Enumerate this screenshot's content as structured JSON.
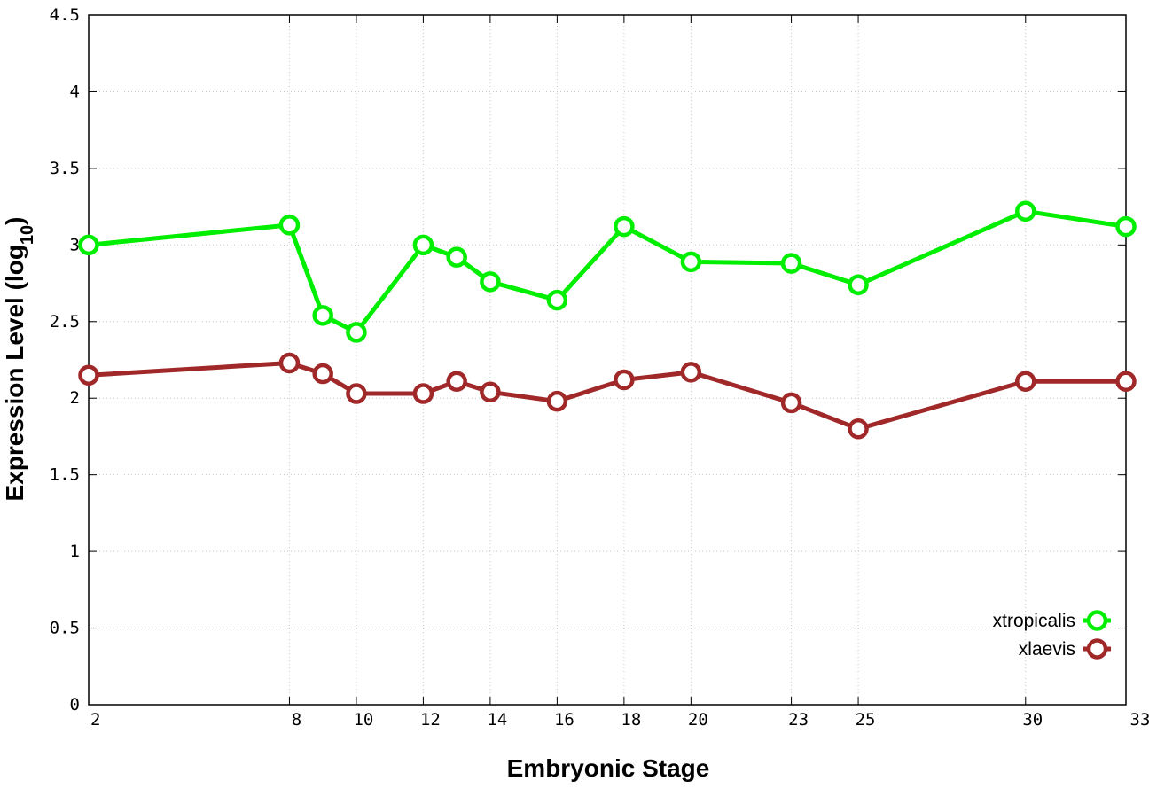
{
  "chart_data": {
    "type": "line",
    "xlabel": "Embryonic Stage",
    "ylabel_main": "Expression Level (log",
    "ylabel_sub": "10",
    "ylabel_close": ")",
    "xlim": [
      2,
      33
    ],
    "ylim": [
      0,
      4.5
    ],
    "x_ticks": [
      2,
      8,
      10,
      12,
      14,
      16,
      18,
      20,
      23,
      25,
      30,
      33
    ],
    "y_ticks": [
      "0",
      "0.5",
      "1",
      "1.5",
      "2",
      "2.5",
      "3",
      "3.5",
      "4",
      "4.5"
    ],
    "grid": true,
    "legend_position": "bottom-right",
    "series": [
      {
        "name": "xtropicalis",
        "color": "#00ee00",
        "x": [
          2,
          8,
          9,
          10,
          12,
          13,
          14,
          16,
          18,
          20,
          23,
          25,
          30,
          33
        ],
        "y": [
          3.0,
          3.13,
          2.54,
          2.43,
          3.0,
          2.92,
          2.76,
          2.64,
          3.12,
          2.89,
          2.88,
          2.74,
          3.22,
          3.12
        ]
      },
      {
        "name": "xlaevis",
        "color": "#a02828",
        "x": [
          2,
          8,
          9,
          10,
          12,
          13,
          14,
          16,
          18,
          20,
          23,
          25,
          30,
          33
        ],
        "y": [
          2.15,
          2.23,
          2.16,
          2.03,
          2.03,
          2.11,
          2.04,
          1.98,
          2.12,
          2.17,
          1.97,
          1.8,
          2.11,
          2.11
        ]
      }
    ]
  }
}
